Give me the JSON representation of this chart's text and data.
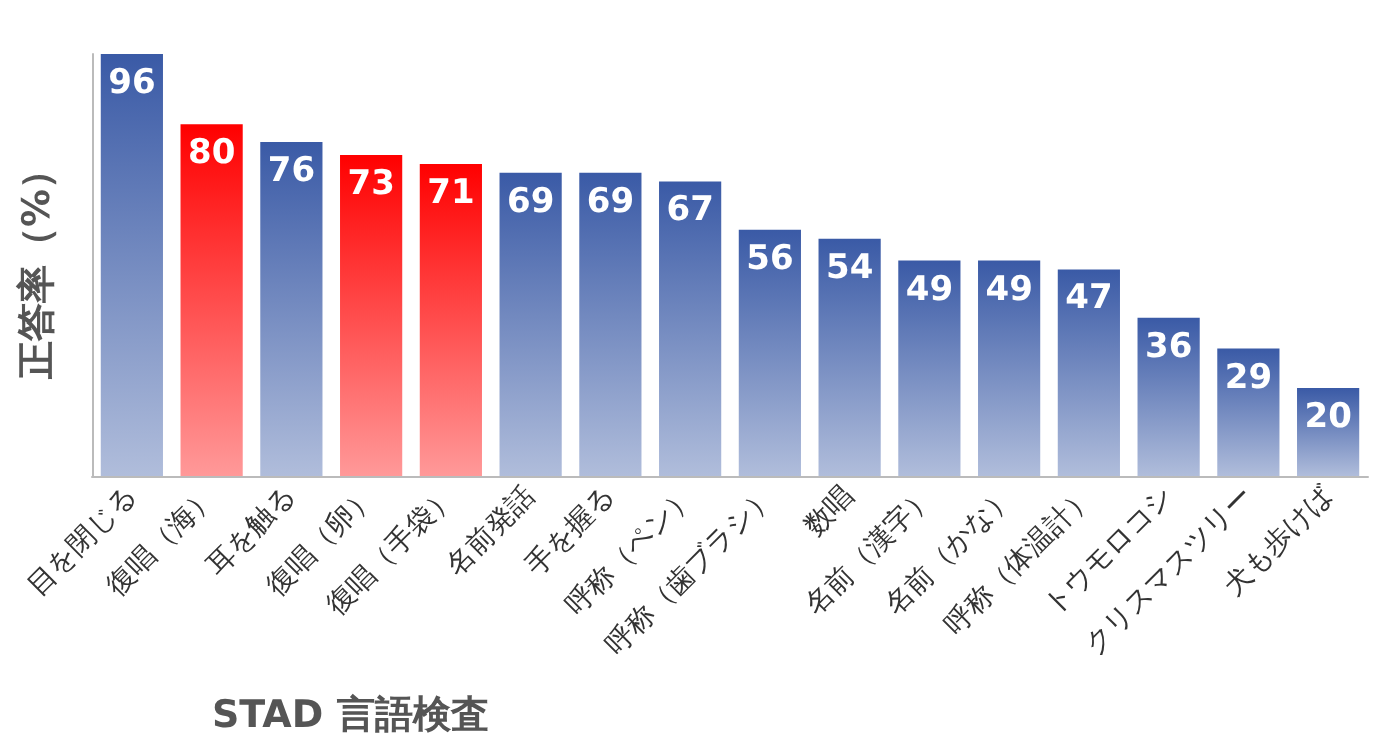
{
  "chart_data": {
    "type": "bar",
    "xlabel": "STAD 言語検査",
    "ylabel": "正答率（%）",
    "categories": [
      "目を閉じる",
      "復唱（海）",
      "耳を触る",
      "復唱（卵）",
      "復唱（手袋）",
      "名前発話",
      "手を握る",
      "呼称（ペン）",
      "呼称（歯ブラシ）",
      "数唱",
      "名前（漢字）",
      "名前（かな）",
      "呼称（体温計）",
      "トウモロコシ",
      "クリスマスツリー",
      "犬も歩けば"
    ],
    "values": [
      96,
      80,
      76,
      73,
      71,
      69,
      69,
      67,
      56,
      54,
      49,
      49,
      47,
      36,
      29,
      20
    ],
    "colors": [
      "#3a5aa6",
      "#ff0000",
      "#3a5aa6",
      "#ff0000",
      "#ff0000",
      "#3a5aa6",
      "#3a5aa6",
      "#3a5aa6",
      "#3a5aa6",
      "#3a5aa6",
      "#3a5aa6",
      "#3a5aa6",
      "#3a5aa6",
      "#3a5aa6",
      "#3a5aa6",
      "#3a5aa6"
    ],
    "data_labels": true
  }
}
